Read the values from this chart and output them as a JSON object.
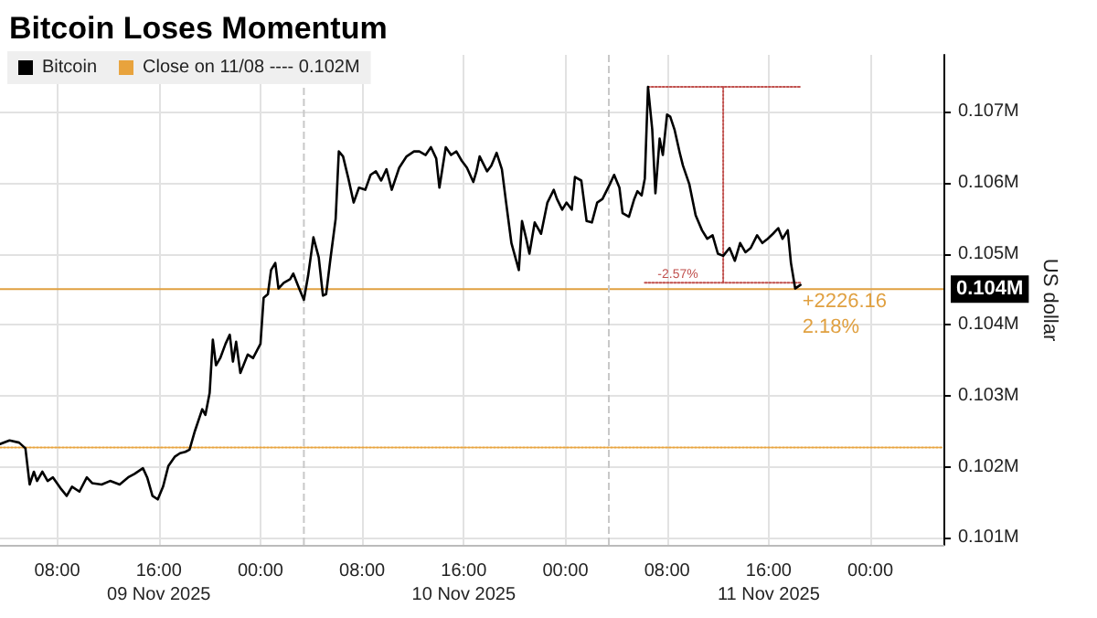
{
  "chart_data": {
    "type": "line",
    "title": "Bitcoin Loses Momentum",
    "ylabel": "US dollar",
    "x": [
      "2025-11-09T03:30",
      "2025-11-09T04:15",
      "2025-11-09T05:00",
      "2025-11-09T05:30",
      "2025-11-09T05:50",
      "2025-11-09T06:10",
      "2025-11-09T06:25",
      "2025-11-09T06:50",
      "2025-11-09T07:15",
      "2025-11-09T07:40",
      "2025-11-09T08:15",
      "2025-11-09T08:45",
      "2025-11-09T09:10",
      "2025-11-09T09:45",
      "2025-11-09T10:20",
      "2025-11-09T10:45",
      "2025-11-09T11:30",
      "2025-11-09T12:10",
      "2025-11-09T12:55",
      "2025-11-09T13:35",
      "2025-11-09T14:05",
      "2025-11-09T14:45",
      "2025-11-09T15:05",
      "2025-11-09T15:30",
      "2025-11-09T15:55",
      "2025-11-09T16:20",
      "2025-11-09T16:45",
      "2025-11-09T17:15",
      "2025-11-09T17:40",
      "2025-11-09T18:05",
      "2025-11-09T18:25",
      "2025-11-09T18:50",
      "2025-11-09T19:25",
      "2025-11-09T19:40",
      "2025-11-09T20:00",
      "2025-11-09T20:15",
      "2025-11-09T20:30",
      "2025-11-09T20:50",
      "2025-11-09T21:15",
      "2025-11-09T21:35",
      "2025-11-09T21:50",
      "2025-11-09T22:05",
      "2025-11-09T22:25",
      "2025-11-09T23:00",
      "2025-11-09T23:25",
      "2025-11-10T00:00",
      "2025-11-10T00:15",
      "2025-11-10T00:35",
      "2025-11-10T00:50",
      "2025-11-10T01:10",
      "2025-11-10T01:25",
      "2025-11-10T01:50",
      "2025-11-10T02:20",
      "2025-11-10T02:35",
      "2025-11-10T03:00",
      "2025-11-10T03:25",
      "2025-11-10T03:45",
      "2025-11-10T04:10",
      "2025-11-10T04:35",
      "2025-11-10T04:55",
      "2025-11-10T05:10",
      "2025-11-10T05:30",
      "2025-11-10T05:55",
      "2025-11-10T06:10",
      "2025-11-10T06:30",
      "2025-11-10T06:55",
      "2025-11-10T07:20",
      "2025-11-10T07:45",
      "2025-11-10T08:15",
      "2025-11-10T08:40",
      "2025-11-10T09:05",
      "2025-11-10T09:30",
      "2025-11-10T09:55",
      "2025-11-10T10:20",
      "2025-11-10T10:55",
      "2025-11-10T11:30",
      "2025-11-10T12:05",
      "2025-11-10T12:30",
      "2025-11-10T13:00",
      "2025-11-10T13:25",
      "2025-11-10T13:50",
      "2025-11-10T14:05",
      "2025-11-10T14:35",
      "2025-11-10T15:00",
      "2025-11-10T15:25",
      "2025-11-10T15:50",
      "2025-11-10T16:15",
      "2025-11-10T16:45",
      "2025-11-10T17:00",
      "2025-11-10T17:15",
      "2025-11-10T17:50",
      "2025-11-10T18:10",
      "2025-11-10T18:35",
      "2025-11-10T19:00",
      "2025-11-10T19:20",
      "2025-11-10T19:45",
      "2025-11-10T20:20",
      "2025-11-10T20:35",
      "2025-11-10T20:55",
      "2025-11-10T21:10",
      "2025-11-10T21:35",
      "2025-11-10T22:05",
      "2025-11-10T22:35",
      "2025-11-10T23:05",
      "2025-11-10T23:20",
      "2025-11-10T23:45",
      "2025-11-11T00:05",
      "2025-11-11T00:30",
      "2025-11-11T00:45",
      "2025-11-11T01:15",
      "2025-11-11T01:40",
      "2025-11-11T02:05",
      "2025-11-11T02:30",
      "2025-11-11T02:55",
      "2025-11-11T03:30",
      "2025-11-11T03:50",
      "2025-11-11T04:15",
      "2025-11-11T04:30",
      "2025-11-11T05:00",
      "2025-11-11T05:25",
      "2025-11-11T05:40",
      "2025-11-11T06:00",
      "2025-11-11T06:15",
      "2025-11-11T06:30",
      "2025-11-11T06:50",
      "2025-11-11T07:05",
      "2025-11-11T07:25",
      "2025-11-11T07:40",
      "2025-11-11T08:00",
      "2025-11-11T08:15",
      "2025-11-11T08:35",
      "2025-11-11T09:00",
      "2025-11-11T09:15",
      "2025-11-11T09:45",
      "2025-11-11T10:15",
      "2025-11-11T10:45",
      "2025-11-11T11:10",
      "2025-11-11T11:35",
      "2025-11-11T12:00",
      "2025-11-11T12:25",
      "2025-11-11T12:55",
      "2025-11-11T13:20",
      "2025-11-11T13:45",
      "2025-11-11T14:10",
      "2025-11-11T14:35",
      "2025-11-11T15:05",
      "2025-11-11T15:30",
      "2025-11-11T15:55",
      "2025-11-11T16:20",
      "2025-11-11T16:45",
      "2025-11-11T17:05",
      "2025-11-11T17:30",
      "2025-11-11T17:45",
      "2025-11-11T18:05",
      "2025-11-11T18:30"
    ],
    "series": [
      {
        "name": "Bitcoin",
        "color": "#000000",
        "values": [
          0.10232,
          0.10237,
          0.10234,
          0.10226,
          0.10175,
          0.10193,
          0.1018,
          0.10193,
          0.1018,
          0.10185,
          0.1017,
          0.10159,
          0.10172,
          0.10165,
          0.10185,
          0.10177,
          0.10175,
          0.1018,
          0.10175,
          0.10185,
          0.1019,
          0.10198,
          0.10185,
          0.10159,
          0.10154,
          0.10172,
          0.10201,
          0.10214,
          0.10219,
          0.10221,
          0.10224,
          0.1025,
          0.10281,
          0.10273,
          0.10304,
          0.10379,
          0.10343,
          0.10353,
          0.10373,
          0.10386,
          0.10348,
          0.10376,
          0.10332,
          0.10358,
          0.10353,
          0.10373,
          0.10438,
          0.10443,
          0.10477,
          0.10487,
          0.10451,
          0.10459,
          0.10464,
          0.10472,
          0.10453,
          0.10435,
          0.10469,
          0.10523,
          0.10495,
          0.10441,
          0.10443,
          0.10492,
          0.10549,
          0.10644,
          0.10637,
          0.10606,
          0.10572,
          0.10593,
          0.1059,
          0.10611,
          0.10616,
          0.10603,
          0.10619,
          0.1059,
          0.10621,
          0.10637,
          0.10644,
          0.10644,
          0.10639,
          0.1065,
          0.10634,
          0.10593,
          0.1065,
          0.10639,
          0.10644,
          0.10631,
          0.10621,
          0.10601,
          0.10616,
          0.10637,
          0.10616,
          0.10624,
          0.10642,
          0.10619,
          0.10572,
          0.10515,
          0.10477,
          0.10546,
          0.10521,
          0.105,
          0.10544,
          0.10528,
          0.10572,
          0.1059,
          0.10577,
          0.10562,
          0.10572,
          0.10562,
          0.10608,
          0.10603,
          0.10546,
          0.10544,
          0.10572,
          0.10577,
          0.10598,
          0.10611,
          0.10593,
          0.10557,
          0.10552,
          0.10577,
          0.10588,
          0.10582,
          0.10606,
          0.10735,
          0.10675,
          0.10585,
          0.10662,
          0.10639,
          0.10696,
          0.10693,
          0.10675,
          0.10642,
          0.10624,
          0.10598,
          0.10554,
          0.10533,
          0.10521,
          0.10526,
          0.105,
          0.10497,
          0.10508,
          0.1049,
          0.10515,
          0.10502,
          0.10508,
          0.10526,
          0.10515,
          0.10521,
          0.10528,
          0.10536,
          0.10521,
          0.10533,
          0.10487,
          0.10451,
          0.10456
        ]
      },
      {
        "name": "Close on 11/08 ---- 0.102M",
        "color": "#e8a33d",
        "line_style": "dotted",
        "x": [
          "2025-11-09T03:30",
          "2025-11-12T05:45"
        ],
        "values": [
          0.10227,
          0.10227
        ]
      },
      {
        "color": "#c0504d",
        "line_style": "dotted",
        "x": [
          "2025-11-11T06:30",
          "2025-11-11T18:30"
        ],
        "values": [
          0.10735,
          0.10735
        ]
      },
      {
        "color": "#c0504d",
        "line_style": "dotted",
        "x": [
          "2025-11-11T12:25",
          "2025-11-11T12:25"
        ],
        "values": [
          0.10735,
          0.10459
        ]
      },
      {
        "color": "#c0504d",
        "line_style": "dotted",
        "x": [
          "2025-11-11T06:15",
          "2025-11-11T18:30"
        ],
        "values": [
          0.10459,
          0.10459
        ]
      }
    ],
    "xlim": [
      "2025-11-09T03:30",
      "2025-11-12T05:45"
    ],
    "xticks": [
      {
        "value": "2025-11-09T08:00",
        "label": "08:00"
      },
      {
        "value": "2025-11-09T16:00",
        "label": "16:00\n09 Nov 2025"
      },
      {
        "value": "2025-11-10T00:00",
        "label": "00:00"
      },
      {
        "value": "2025-11-10T08:00",
        "label": "08:00"
      },
      {
        "value": "2025-11-10T16:00",
        "label": "16:00\n10 Nov 2025"
      },
      {
        "value": "2025-11-11T00:00",
        "label": "00:00"
      },
      {
        "value": "2025-11-11T08:00",
        "label": "08:00"
      },
      {
        "value": "2025-11-11T16:00",
        "label": "16:00\n11 Nov 2025"
      },
      {
        "value": "2025-11-12T00:00",
        "label": "00:00"
      }
    ],
    "ylim": [
      0.1009,
      0.1078
    ],
    "yticks": [
      {
        "value": 0.101,
        "label": "0.101M"
      },
      {
        "value": 0.102,
        "label": "0.102M"
      },
      {
        "value": 0.103,
        "label": "0.103M"
      },
      {
        "value": 0.104,
        "label": "0.104M"
      },
      {
        "value": 0.105,
        "label": "0.105M"
      },
      {
        "value": 0.106,
        "label": "0.106M"
      },
      {
        "value": 0.107,
        "label": "0.107M"
      }
    ],
    "ref_lines": [
      {
        "axis": "y",
        "value": 0.1045,
        "label": "0.104M",
        "color": "#e0a040"
      },
      {
        "axis": "x",
        "value": "2025-11-10T03:25",
        "label": null,
        "color": "#c8c8c8",
        "line_style": "dashed"
      },
      {
        "axis": "x",
        "value": "2025-11-11T03:25",
        "label": null,
        "color": "#c8c8c8",
        "line_style": "dashed"
      }
    ],
    "annotations": [
      {
        "text": "+2226.16\n2.18%",
        "x": "2025-11-11T18:30",
        "y": 0.1045
      },
      {
        "text": "-2.57%",
        "x": "2025-11-11T06:15",
        "y": 0.10459
      }
    ],
    "grid": true,
    "legend": "top left",
    "marker": "none",
    "line_style": "solid"
  }
}
